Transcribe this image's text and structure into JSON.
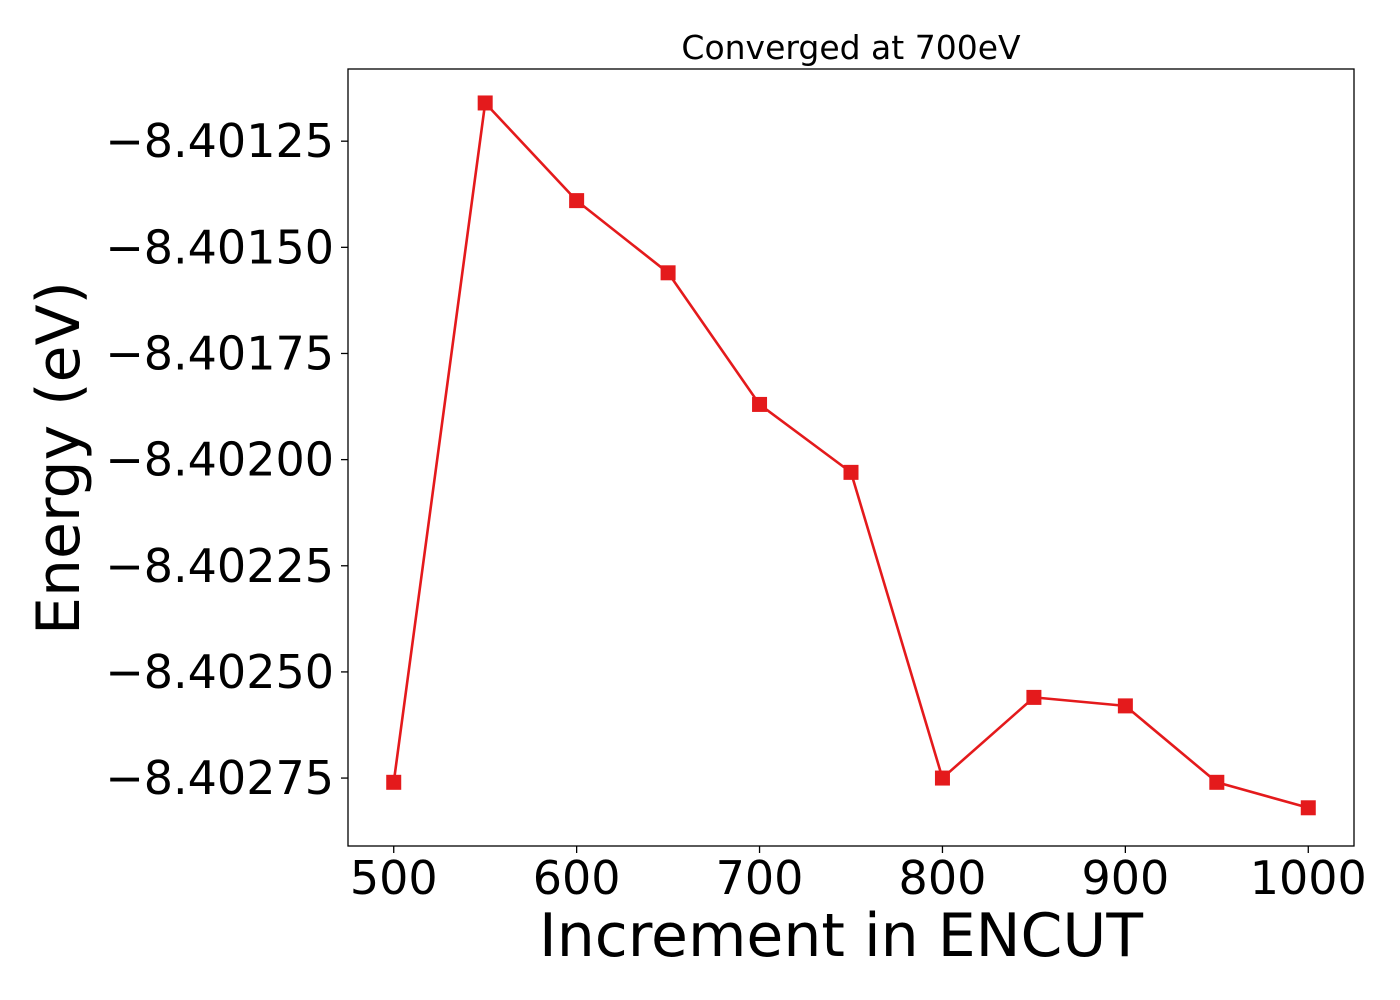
{
  "chart_data": {
    "type": "line",
    "title": "Converged at 700eV",
    "xlabel": "Increment in ENCUT",
    "ylabel": "Energy (eV)",
    "xlim": [
      475,
      1025
    ],
    "ylim": [
      -8.40291,
      -8.40108
    ],
    "x_ticks": [
      500,
      600,
      700,
      800,
      900,
      1000
    ],
    "x_tick_labels": [
      "500",
      "600",
      "700",
      "800",
      "900",
      "1000"
    ],
    "y_ticks": [
      -8.40125,
      -8.4015,
      -8.40175,
      -8.402,
      -8.40225,
      -8.4025,
      -8.40275
    ],
    "y_tick_labels": [
      "−8.40125",
      "−8.40150",
      "−8.40175",
      "−8.40200",
      "−8.40225",
      "−8.40250",
      "−8.40275"
    ],
    "grid": false,
    "series": [
      {
        "color": "#e41a1c",
        "marker": "square",
        "x": [
          500,
          550,
          600,
          650,
          700,
          750,
          800,
          850,
          900,
          950,
          1000
        ],
        "y": [
          -8.40276,
          -8.40116,
          -8.40139,
          -8.40156,
          -8.40187,
          -8.40203,
          -8.40275,
          -8.40256,
          -8.40258,
          -8.40276,
          -8.40282
        ]
      }
    ]
  }
}
